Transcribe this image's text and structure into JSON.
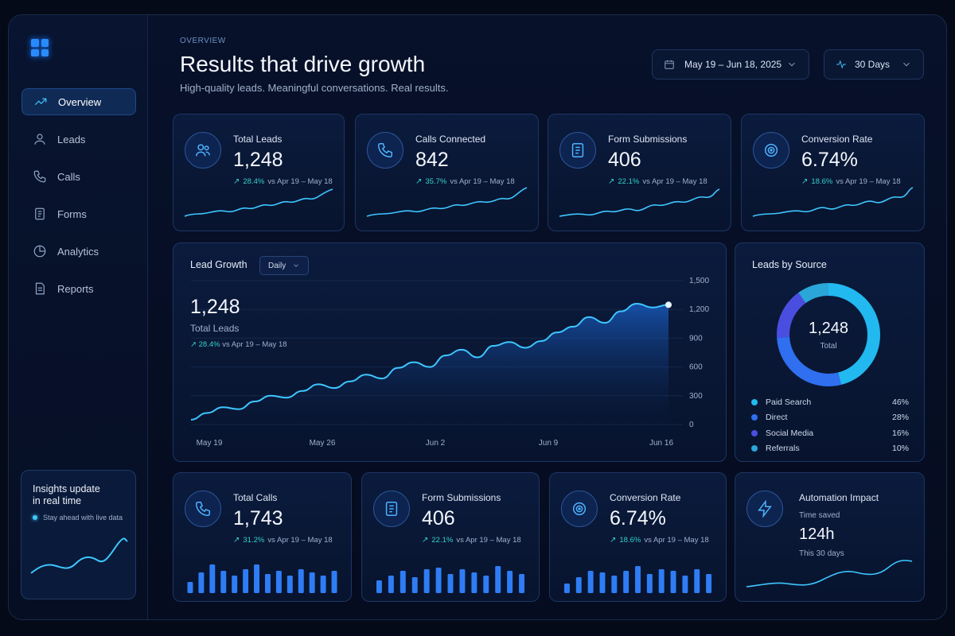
{
  "header": {
    "eyebrow": "OVERVIEW",
    "title": "Results that drive growth",
    "subtitle": "High-quality leads. Meaningful conversations. Real results.",
    "date_range": "May 19 – Jun 18, 2025",
    "period": "30 Days"
  },
  "sidebar": {
    "items": [
      {
        "label": "Overview",
        "icon": "trend-icon",
        "active": true
      },
      {
        "label": "Leads",
        "icon": "user-icon"
      },
      {
        "label": "Calls",
        "icon": "phone-icon"
      },
      {
        "label": "Forms",
        "icon": "document-icon"
      },
      {
        "label": "Analytics",
        "icon": "pie-icon"
      },
      {
        "label": "Reports",
        "icon": "report-icon"
      }
    ],
    "insights": {
      "title_line1": "Insights update",
      "title_line2": "in real time",
      "subtitle": "Stay ahead with live data"
    }
  },
  "kpis_top": [
    {
      "label": "Total Leads",
      "value": "1,248",
      "pct": "28.4%",
      "compare": "vs Apr 19 – May 18",
      "icon": "users-icon"
    },
    {
      "label": "Calls Connected",
      "value": "842",
      "pct": "35.7%",
      "compare": "vs Apr 19 – May 18",
      "icon": "phone-icon"
    },
    {
      "label": "Form Submissions",
      "value": "406",
      "pct": "22.1%",
      "compare": "vs Apr 19 – May 18",
      "icon": "document-icon"
    },
    {
      "label": "Conversion Rate",
      "value": "6.74%",
      "pct": "18.6%",
      "compare": "vs Apr 19 – May 18",
      "icon": "target-icon"
    }
  ],
  "lead_growth": {
    "title": "Lead Growth",
    "granularity": "Daily",
    "value": "1,248",
    "value_label": "Total Leads",
    "pct": "28.4%",
    "compare": "vs Apr 19 – May 18"
  },
  "chart_data": {
    "type": "area",
    "x_ticks": [
      "May 19",
      "May 26",
      "Jun 2",
      "Jun 9",
      "Jun 16"
    ],
    "y_ticks": [
      "0",
      "300",
      "600",
      "900",
      "1,200",
      "1,500"
    ],
    "ylim": [
      0,
      1500
    ],
    "series": [
      {
        "values": [
          50,
          120,
          180,
          160,
          240,
          300,
          280,
          350,
          420,
          380,
          450,
          520,
          480,
          590,
          650,
          600,
          720,
          780,
          700,
          820,
          860,
          800,
          870,
          960,
          1020,
          1120,
          1060,
          1180,
          1260,
          1220,
          1248
        ]
      }
    ]
  },
  "leads_by_source": {
    "title": "Leads by Source",
    "total": "1,248",
    "total_label": "Total",
    "items": [
      {
        "label": "Paid Search",
        "pct": "46%",
        "value": 46,
        "color": "#22b8f0"
      },
      {
        "label": "Direct",
        "pct": "28%",
        "value": 28,
        "color": "#2f6ff0"
      },
      {
        "label": "Social Media",
        "pct": "16%",
        "value": 16,
        "color": "#4a4ee0"
      },
      {
        "label": "Referrals",
        "pct": "10%",
        "value": 10,
        "color": "#2aa6d8"
      }
    ]
  },
  "kpis_bottom": [
    {
      "label": "Total Calls",
      "value": "1,743",
      "pct": "31.2%",
      "compare": "vs Apr 19 – May 18",
      "icon": "phone-icon"
    },
    {
      "label": "Form Submissions",
      "value": "406",
      "pct": "22.1%",
      "compare": "vs Apr 19 – May 18",
      "icon": "document-icon"
    },
    {
      "label": "Conversion Rate",
      "value": "6.74%",
      "pct": "18.6%",
      "compare": "vs Apr 19 – May 18",
      "icon": "target-icon"
    }
  ],
  "automation": {
    "title": "Automation Impact",
    "subtitle": "Time saved",
    "value": "124h",
    "period": "This 30 days",
    "icon": "lightning-icon"
  },
  "colors": {
    "accent": "#3ec6ff",
    "positive": "#34d0c8",
    "bar": "#2f7df5"
  }
}
